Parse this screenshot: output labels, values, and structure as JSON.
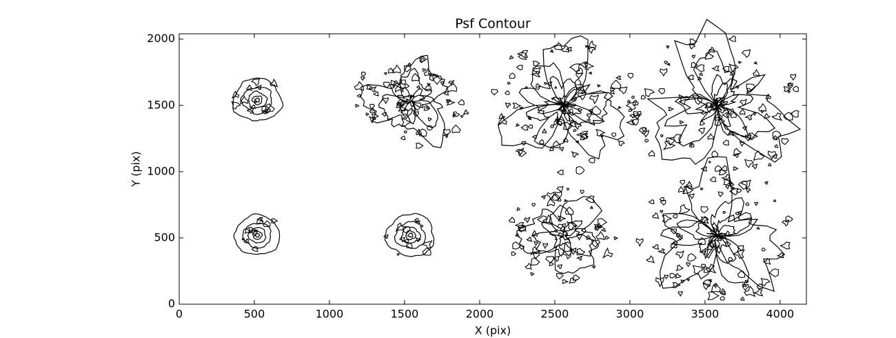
{
  "chart_data": {
    "type": "contour",
    "title": "Psf Contour",
    "x_label": "X (pix)",
    "y_label": "Y (pix)",
    "xlim": [
      0,
      4175
    ],
    "ylim": [
      0,
      2040
    ],
    "xticks": [
      0,
      500,
      1000,
      1500,
      2000,
      2500,
      3000,
      3500,
      4000
    ],
    "yticks": [
      0,
      500,
      1000,
      1500,
      2000
    ],
    "color": "#000000",
    "sources": [
      {
        "x": 520,
        "y": 1540,
        "radius": 160
      },
      {
        "x": 1540,
        "y": 1530,
        "radius": 330
      },
      {
        "x": 2560,
        "y": 1500,
        "radius": 440
      },
      {
        "x": 3580,
        "y": 1500,
        "radius": 500
      },
      {
        "x": 520,
        "y": 520,
        "radius": 150
      },
      {
        "x": 1540,
        "y": 520,
        "radius": 160
      },
      {
        "x": 2560,
        "y": 520,
        "radius": 320
      },
      {
        "x": 3580,
        "y": 520,
        "radius": 450
      }
    ]
  }
}
